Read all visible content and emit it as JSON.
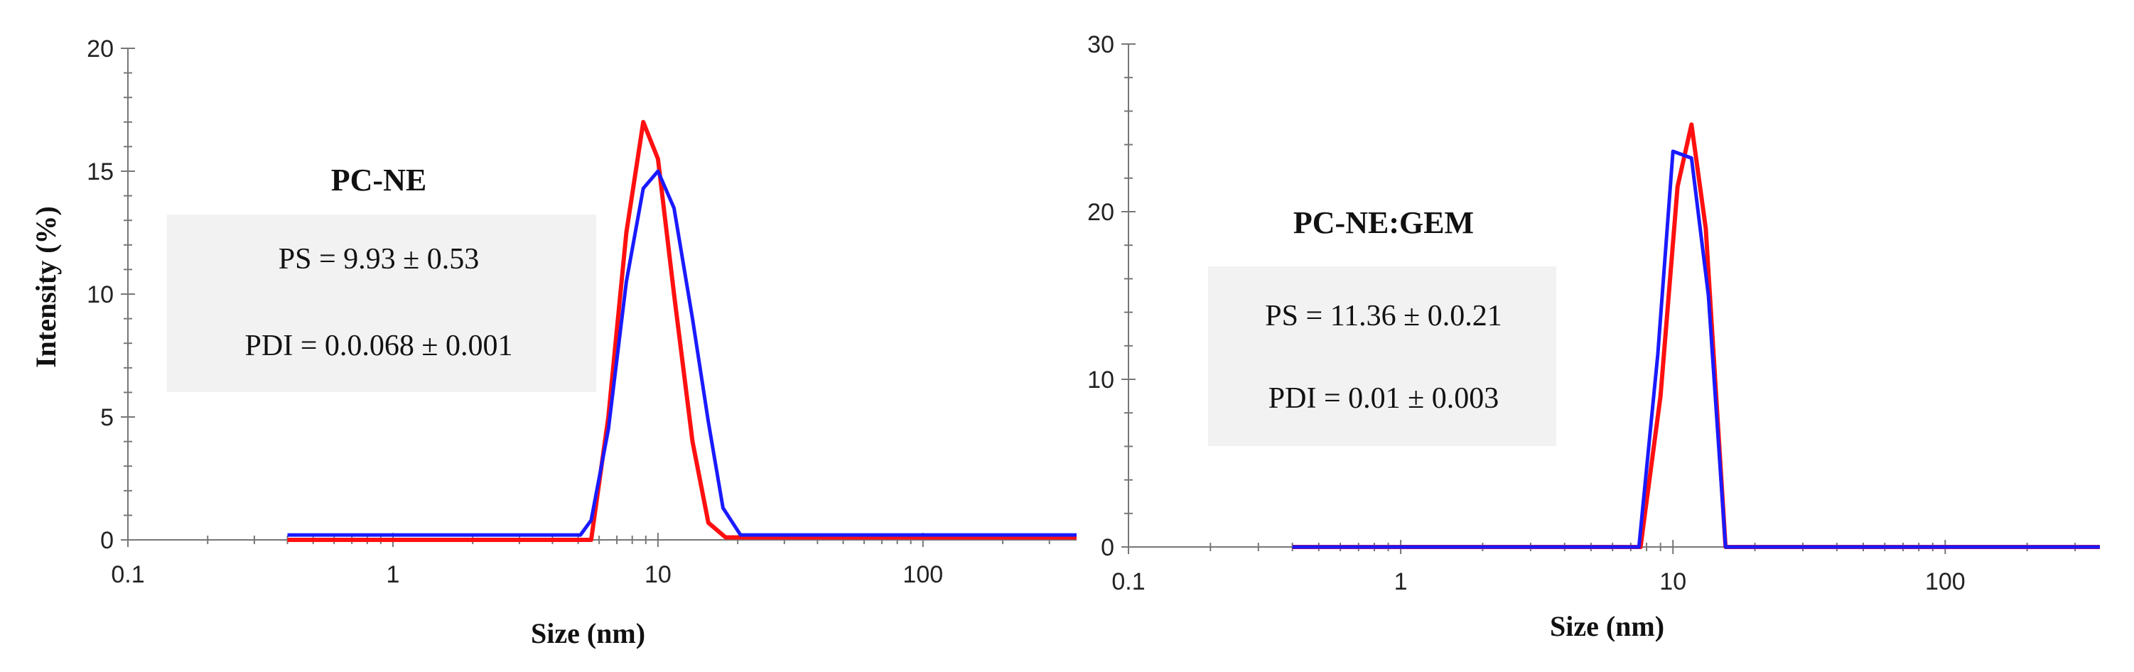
{
  "chart_data": [
    {
      "type": "line",
      "xscale": "log",
      "xlim": [
        0.1,
        380
      ],
      "ylim": [
        0,
        20
      ],
      "xticks": [
        0.1,
        1,
        10,
        100
      ],
      "xtick_labels": [
        "0.1",
        "1",
        "10",
        "100"
      ],
      "yticks": [
        0,
        5,
        10,
        15,
        20
      ],
      "ytick_labels": [
        "0",
        "5",
        "10",
        "15",
        "20"
      ],
      "xlabel": "Size (nm)",
      "ylabel": "Intensity (%)",
      "annotation": {
        "title": "PC-NE",
        "lines": [
          "PS = 9.93 ± 0.53",
          "PDI = 0.0.068 ± 0.001"
        ]
      },
      "series": [
        {
          "color": "#ff1010",
          "x": [
            0.4,
            5.6,
            6.5,
            7.6,
            8.8,
            10.0,
            11.5,
            13.5,
            15.5,
            18,
            380
          ],
          "y": [
            0,
            0,
            5,
            12.5,
            17,
            15.5,
            10,
            4,
            0.7,
            0.1,
            0.1
          ]
        },
        {
          "color": "#1a1aff",
          "x": [
            0.4,
            5.1,
            5.6,
            6.5,
            7.6,
            8.8,
            10.0,
            11.5,
            13.5,
            15.5,
            17.6,
            20.5,
            380
          ],
          "y": [
            0.2,
            0.2,
            0.8,
            4.5,
            10.5,
            14.3,
            15,
            13.5,
            9,
            4.8,
            1.3,
            0.2,
            0.2
          ]
        }
      ]
    },
    {
      "type": "line",
      "xscale": "log",
      "xlim": [
        0.1,
        370
      ],
      "ylim": [
        0,
        30
      ],
      "xticks": [
        0.1,
        1,
        10,
        100
      ],
      "xtick_labels": [
        "0.1",
        "1",
        "10",
        "100"
      ],
      "yticks": [
        0,
        10,
        20,
        30
      ],
      "ytick_labels": [
        "0",
        "10",
        "20",
        "30"
      ],
      "xlabel": "Size (nm)",
      "ylabel": "",
      "annotation": {
        "title": "PC-NE:GEM",
        "lines": [
          "PS = 11.36 ± 0.0.21",
          "PDI = 0.01 ± 0.003"
        ]
      },
      "series": [
        {
          "color": "#ff1010",
          "x": [
            0.4,
            7.6,
            9.0,
            10.4,
            11.7,
            13.2,
            15.6,
            370
          ],
          "y": [
            0,
            0,
            9,
            21.5,
            25.2,
            19,
            0,
            0
          ]
        },
        {
          "color": "#1a1aff",
          "x": [
            0.4,
            7.5,
            8.8,
            10.0,
            11.7,
            13.5,
            15.6,
            370
          ],
          "y": [
            0,
            0,
            11.5,
            23.6,
            23.2,
            15,
            0,
            0
          ]
        }
      ]
    }
  ]
}
